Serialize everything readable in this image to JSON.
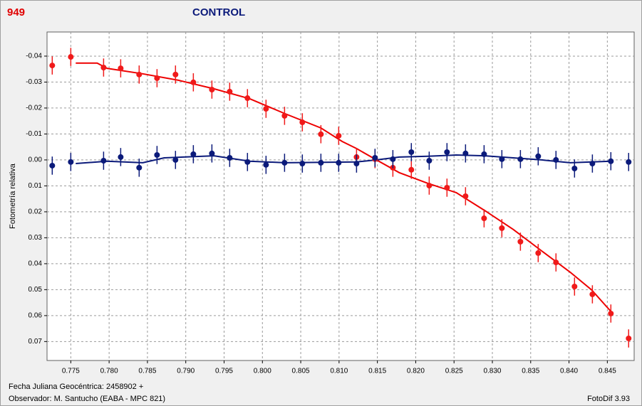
{
  "chart_data": {
    "type": "scatter",
    "id_label": "949",
    "title": "CONTROL",
    "y_label": "Fotometría relativa",
    "footer_date": "Fecha Juliana Geocéntrica: 2458902 +",
    "footer_observer": "Observador: M. Santucho (EABA - MPC 821)",
    "software": "FotoDif 3.93",
    "grid": true,
    "y_inverted": true,
    "xlim": [
      0.7719,
      0.8485
    ],
    "ylim": [
      -0.0493,
      0.0773
    ],
    "xticks": [
      0.775,
      {
        "value": 0.78,
        "label": "0.780"
      },
      0.785,
      {
        "value": 0.79,
        "label": "0.790"
      },
      0.795,
      {
        "value": 0.8,
        "label": "0.800"
      },
      0.805,
      {
        "value": 0.81,
        "label": "0.810"
      },
      0.815,
      {
        "value": 0.82,
        "label": "0.820"
      },
      0.825,
      {
        "value": 0.83,
        "label": "0.830"
      },
      0.835,
      {
        "value": 0.84,
        "label": "0.840"
      },
      0.845
    ],
    "yticks": [
      -0.04,
      -0.03,
      -0.02,
      -0.01,
      {
        "value": 0,
        "label": "0.00"
      },
      0.01,
      0.02,
      0.03,
      0.04,
      0.05,
      0.06,
      0.07
    ],
    "x": [
      0.77258,
      0.775,
      0.77928,
      0.78151,
      0.78392,
      0.78625,
      0.78866,
      0.79099,
      0.79341,
      0.79573,
      0.79805,
      0.80047,
      0.80289,
      0.80521,
      0.80763,
      0.80995,
      0.81228,
      0.81469,
      0.81702,
      0.81943,
      0.82176,
      0.82408,
      0.8265,
      0.82892,
      0.83124,
      0.83366,
      0.83598,
      0.8383,
      0.84072,
      0.84305,
      0.84546,
      0.84778
    ],
    "series": [
      {
        "color": "#f01a1a",
        "line_color": "#ee0000",
        "error": 0.0035,
        "values": [
          -0.0364,
          -0.0397,
          -0.0356,
          -0.0353,
          -0.0329,
          -0.0315,
          -0.0329,
          -0.0299,
          -0.0271,
          -0.0263,
          -0.0238,
          -0.0197,
          -0.017,
          -0.0145,
          -0.0099,
          -0.0093,
          -0.0011,
          -0.0003,
          0.003,
          0.0038,
          0.0099,
          0.0107,
          0.014,
          0.0225,
          0.0263,
          0.0315,
          0.0359,
          0.0395,
          0.0488,
          0.0518,
          0.0592,
          0.0688
        ],
        "fit": {
          "x": [
            0.77565,
            0.77844,
            0.77974,
            0.78439,
            0.78904,
            0.79368,
            0.79833,
            0.80298,
            0.80763,
            0.81041,
            0.81227,
            0.81488,
            0.81785,
            0.82157,
            0.82529,
            0.82901,
            0.83272,
            0.83644,
            0.84016,
            0.84295,
            0.84546
          ],
          "values": [
            -0.0373,
            -0.0373,
            -0.0353,
            -0.0332,
            -0.0307,
            -0.0274,
            -0.0236,
            -0.0178,
            -0.0123,
            -0.0071,
            -0.0044,
            0,
            0.0049,
            0.009,
            0.0126,
            0.0195,
            0.0268,
            0.0351,
            0.0433,
            0.0501,
            0.0584
          ]
        }
      },
      {
        "color": "#0b1a7a",
        "line_color": "#0b1a7a",
        "error": 0.0035,
        "values": [
          0.0022,
          0.0008,
          0.0003,
          -0.0011,
          0.003,
          -0.0019,
          0,
          -0.0022,
          -0.0025,
          -0.0008,
          0.0008,
          0.0019,
          0.0011,
          0.0014,
          0.0011,
          0.0011,
          0.0014,
          -0.0008,
          -0.0003,
          -0.003,
          0.0003,
          -0.003,
          -0.0025,
          -0.0022,
          -0.0003,
          -0.0003,
          -0.0014,
          0,
          0.0033,
          0.0014,
          0.0005,
          0.0008
        ],
        "fit": {
          "x": [
            0.77565,
            0.77974,
            0.78439,
            0.78718,
            0.79368,
            0.79833,
            0.80298,
            0.81227,
            0.81488,
            0.81785,
            0.82157,
            0.82529,
            0.82901,
            0.83272,
            0.83644,
            0.84016,
            0.84546
          ],
          "values": [
            0.0014,
            0.0005,
            0.0011,
            -0.0008,
            -0.0016,
            0.0005,
            0.0011,
            0.0008,
            0,
            -0.0011,
            -0.0014,
            -0.0019,
            -0.0016,
            -0.0008,
            0,
            0.0011,
            0.0005
          ]
        }
      }
    ]
  }
}
